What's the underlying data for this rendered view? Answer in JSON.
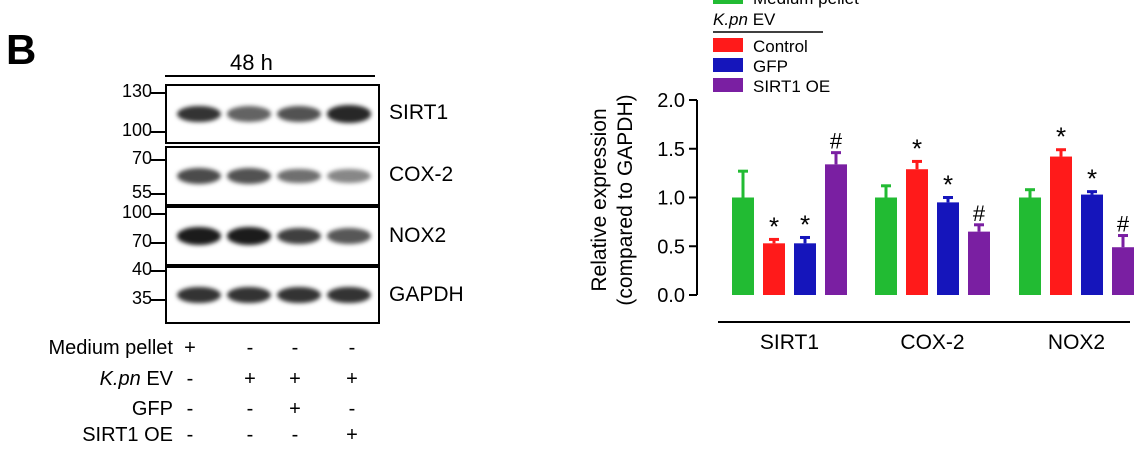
{
  "panel_letter": "B",
  "blot": {
    "timepoint": "48 h",
    "rows": [
      {
        "label": "SIRT1",
        "markers": [
          "130",
          "100"
        ],
        "intensity": [
          0.85,
          0.65,
          0.72,
          0.9
        ]
      },
      {
        "label": "COX-2",
        "markers": [
          "70",
          "55"
        ],
        "intensity": [
          0.75,
          0.72,
          0.6,
          0.5
        ]
      },
      {
        "label": "NOX2",
        "markers": [
          "100",
          "70"
        ],
        "intensity": [
          0.95,
          0.95,
          0.8,
          0.7
        ]
      },
      {
        "label": "GAPDH",
        "markers": [
          "40",
          "35"
        ],
        "intensity": [
          0.85,
          0.85,
          0.85,
          0.85
        ]
      }
    ],
    "conditions": [
      {
        "name": "Medium pellet",
        "italic_prefix": "",
        "signs": [
          "+",
          "-",
          "-",
          "-"
        ]
      },
      {
        "name": "EV",
        "italic_prefix": "K.pn",
        "signs": [
          "-",
          "+",
          "+",
          "+"
        ]
      },
      {
        "name": "GFP",
        "italic_prefix": "",
        "signs": [
          "-",
          "-",
          "+",
          "-"
        ]
      },
      {
        "name": "SIRT1 OE",
        "italic_prefix": "",
        "signs": [
          "-",
          "-",
          "-",
          "+"
        ]
      }
    ]
  },
  "chart_data": {
    "type": "bar",
    "ylabel_line1": "Relative expression",
    "ylabel_line2": "(compared to GAPDH)",
    "ylim": [
      0,
      2.0
    ],
    "yticks": [
      "0.0",
      "0.5",
      "1.0",
      "1.5",
      "2.0"
    ],
    "ytick_values": [
      0,
      0.5,
      1.0,
      1.5,
      2.0
    ],
    "categories": [
      "SIRT1",
      "COX-2",
      "NOX2"
    ],
    "legend": {
      "partial_title": "Medium pellet",
      "group_title_italic": "K.pn",
      "group_title": "EV"
    },
    "series": [
      {
        "name": "Medium pellet",
        "color": "#22bb33",
        "values": [
          1.0,
          1.0,
          1.0
        ],
        "errors": [
          0.27,
          0.12,
          0.08
        ],
        "marks": [
          "",
          "",
          ""
        ]
      },
      {
        "name": "Control",
        "color": "#ff1a1a",
        "values": [
          0.53,
          1.29,
          1.42
        ],
        "errors": [
          0.04,
          0.08,
          0.07
        ],
        "marks": [
          "*",
          "*",
          "*"
        ]
      },
      {
        "name": "GFP",
        "color": "#1515bb",
        "values": [
          0.53,
          0.95,
          1.03
        ],
        "errors": [
          0.06,
          0.05,
          0.03
        ],
        "marks": [
          "*",
          "*",
          "*"
        ]
      },
      {
        "name": "SIRT1 OE",
        "color": "#7a1fa2",
        "values": [
          1.34,
          0.65,
          0.49
        ],
        "errors": [
          0.12,
          0.07,
          0.12
        ],
        "marks": [
          "#",
          "#",
          "#"
        ]
      }
    ]
  }
}
